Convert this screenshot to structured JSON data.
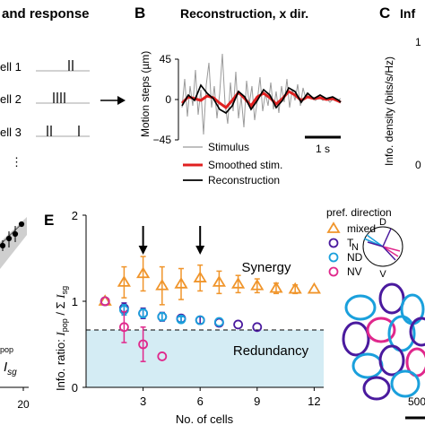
{
  "panelA": {
    "title": "and response",
    "cells": [
      "ell 1",
      "ell 2",
      "ell 3"
    ],
    "ellipsis": "⋮"
  },
  "panelB": {
    "letter": "B",
    "title": "Reconstruction, x dir.",
    "ylabel": "Motion steps (µm)",
    "yticks": [
      "45",
      "0",
      "−45"
    ],
    "scalebar_label": "1 s",
    "legend": [
      "Stimulus",
      "Smoothed stim.",
      "Reconstruction"
    ],
    "colors": {
      "stimulus": "#9a9a9a",
      "smoothed": "#e02020",
      "reconstruction": "#000000"
    }
  },
  "panelC": {
    "letter": "C",
    "title": "Inf",
    "ylabel": "Info. density (bits/s/Hz)",
    "ytick_top": "1",
    "ytick_bottom": "0"
  },
  "panelD": {
    "sub_text": "pop",
    "sub_label": "I",
    "sub_subscript": "sg",
    "xtick": "20"
  },
  "panelE": {
    "letter": "E",
    "ylabel_prefix": "Info. ratio: ",
    "ylabel_ipop": "I",
    "ylabel_pop_sub": "pop",
    "ylabel_div": " / Σ ",
    "ylabel_isg": "I",
    "ylabel_sg_sub": "sg",
    "xlabel": "No. of cells",
    "synergy": "Synergy",
    "redundancy": "Redundancy"
  },
  "panelF": {
    "legend_title": "pref. direction",
    "legend": [
      "mixed",
      "T",
      "ND",
      "NV"
    ],
    "compass": [
      "D",
      "N",
      "V"
    ],
    "scale_label": "500"
  },
  "chart_data": {
    "type": "scatter",
    "xlabel": "No. of cells",
    "ylabel": "Info. ratio: I_pop / Σ I_sg",
    "xlim": [
      0,
      12.5
    ],
    "ylim": [
      0,
      2
    ],
    "xticks": [
      0,
      3,
      6,
      9,
      12
    ],
    "yticks": [
      0,
      1,
      2
    ],
    "reference_line": 1,
    "arrows_at": [
      3,
      6
    ],
    "series": [
      {
        "name": "mixed",
        "marker": "triangle",
        "color": "#f0952b",
        "x": [
          1,
          2,
          3,
          4,
          5,
          6,
          7,
          8,
          9,
          10,
          11,
          12
        ],
        "y": [
          1.0,
          1.22,
          1.32,
          1.18,
          1.2,
          1.27,
          1.22,
          1.2,
          1.18,
          1.15,
          1.14,
          1.14
        ],
        "err": [
          0.0,
          0.18,
          0.2,
          0.22,
          0.18,
          0.15,
          0.13,
          0.1,
          0.08,
          0.06,
          0.05,
          0.0
        ]
      },
      {
        "name": "T",
        "marker": "circle",
        "color": "#4a1a9e",
        "x": [
          1,
          2,
          3,
          4,
          5,
          6,
          7,
          8,
          9
        ],
        "y": [
          1.0,
          0.92,
          0.86,
          0.82,
          0.8,
          0.78,
          0.75,
          0.73,
          0.7
        ],
        "err": [
          0.0,
          0.06,
          0.06,
          0.05,
          0.04,
          0.04,
          0.0,
          0.0,
          0.0
        ]
      },
      {
        "name": "ND",
        "marker": "circle",
        "color": "#1aa0dc",
        "x": [
          1,
          2,
          3,
          4,
          5,
          6,
          7
        ],
        "y": [
          1.0,
          0.9,
          0.86,
          0.82,
          0.79,
          0.78,
          0.76
        ],
        "err": [
          0.0,
          0.06,
          0.05,
          0.04,
          0.03,
          0.0,
          0.0
        ]
      },
      {
        "name": "NV",
        "marker": "circle",
        "color": "#e0288c",
        "x": [
          1,
          2,
          3,
          4
        ],
        "y": [
          1.0,
          0.7,
          0.5,
          0.36
        ],
        "err": [
          0.0,
          0.18,
          0.2,
          0.0
        ]
      }
    ]
  }
}
